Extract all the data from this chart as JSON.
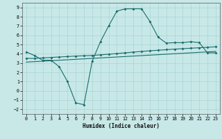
{
  "xlabel": "Humidex (Indice chaleur)",
  "xlim": [
    -0.5,
    23.5
  ],
  "ylim": [
    -2.5,
    9.5
  ],
  "xticks": [
    0,
    1,
    2,
    3,
    4,
    5,
    6,
    7,
    8,
    9,
    10,
    11,
    12,
    13,
    14,
    15,
    16,
    17,
    18,
    19,
    20,
    21,
    22,
    23
  ],
  "yticks": [
    -2,
    -1,
    0,
    1,
    2,
    3,
    4,
    5,
    6,
    7,
    8,
    9
  ],
  "bg_color": "#c8e8e8",
  "grid_color": "#a8d4d4",
  "line_color": "#1a6b6b",
  "line1_x": [
    0,
    1,
    2,
    3,
    4,
    5,
    6,
    7,
    8,
    9,
    10,
    11,
    12,
    13,
    14,
    15,
    16,
    17,
    18,
    19,
    20,
    21,
    22,
    23
  ],
  "line1_y": [
    4.2,
    3.8,
    3.3,
    3.3,
    2.6,
    1.0,
    -1.3,
    -1.5,
    3.2,
    5.3,
    7.0,
    8.6,
    8.85,
    8.85,
    8.85,
    7.5,
    5.8,
    5.15,
    5.2,
    5.2,
    5.3,
    5.2,
    4.1,
    4.1
  ],
  "line2_x": [
    0,
    1,
    2,
    3,
    4,
    5,
    6,
    7,
    8,
    9,
    10,
    11,
    12,
    13,
    14,
    15,
    16,
    17,
    18,
    19,
    20,
    21,
    22,
    23
  ],
  "line2_y": [
    3.5,
    3.5,
    3.55,
    3.6,
    3.65,
    3.7,
    3.75,
    3.78,
    3.82,
    3.88,
    3.95,
    4.02,
    4.1,
    4.18,
    4.25,
    4.32,
    4.38,
    4.44,
    4.5,
    4.55,
    4.6,
    4.65,
    4.7,
    4.75
  ],
  "line3_x": [
    0,
    1,
    2,
    3,
    4,
    5,
    6,
    7,
    8,
    9,
    10,
    11,
    12,
    13,
    14,
    15,
    16,
    17,
    18,
    19,
    20,
    21,
    22,
    23
  ],
  "line3_y": [
    3.1,
    3.15,
    3.2,
    3.25,
    3.3,
    3.35,
    3.4,
    3.45,
    3.5,
    3.55,
    3.6,
    3.65,
    3.7,
    3.75,
    3.8,
    3.85,
    3.9,
    3.95,
    4.0,
    4.05,
    4.1,
    4.15,
    4.2,
    4.25
  ]
}
